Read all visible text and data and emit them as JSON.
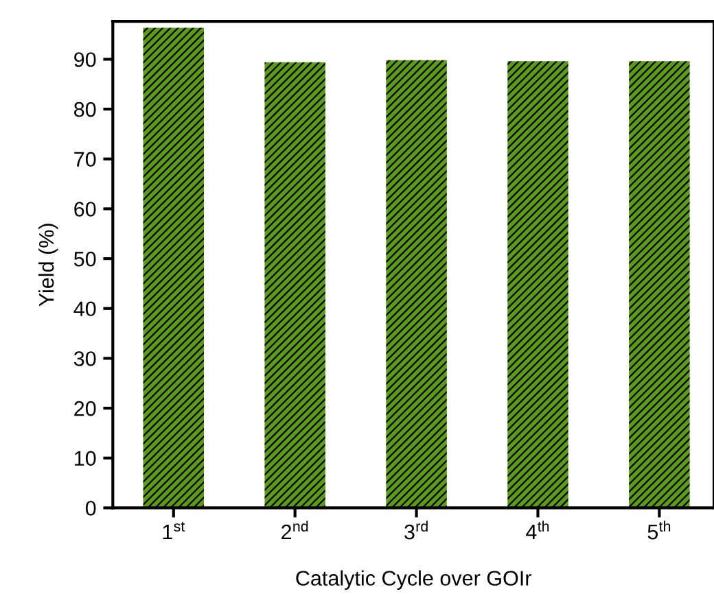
{
  "chart_data": {
    "type": "bar",
    "categories": [
      "1$^{st}$",
      "2$^{nd}$",
      "3$^{rd}$",
      "4$^{th}$",
      "5$^{th}$"
    ],
    "values": [
      96.3,
      89.4,
      89.8,
      89.6,
      89.6
    ],
    "color": "#5c9a1c",
    "xlabel": "Catalytic Cycle over GOIr",
    "ylabel": "Yield (%)",
    "ylim": [
      0,
      97.6
    ],
    "yticks": [
      0,
      10,
      20,
      30,
      40,
      50,
      60,
      70,
      80,
      90
    ],
    "grid": false
  }
}
